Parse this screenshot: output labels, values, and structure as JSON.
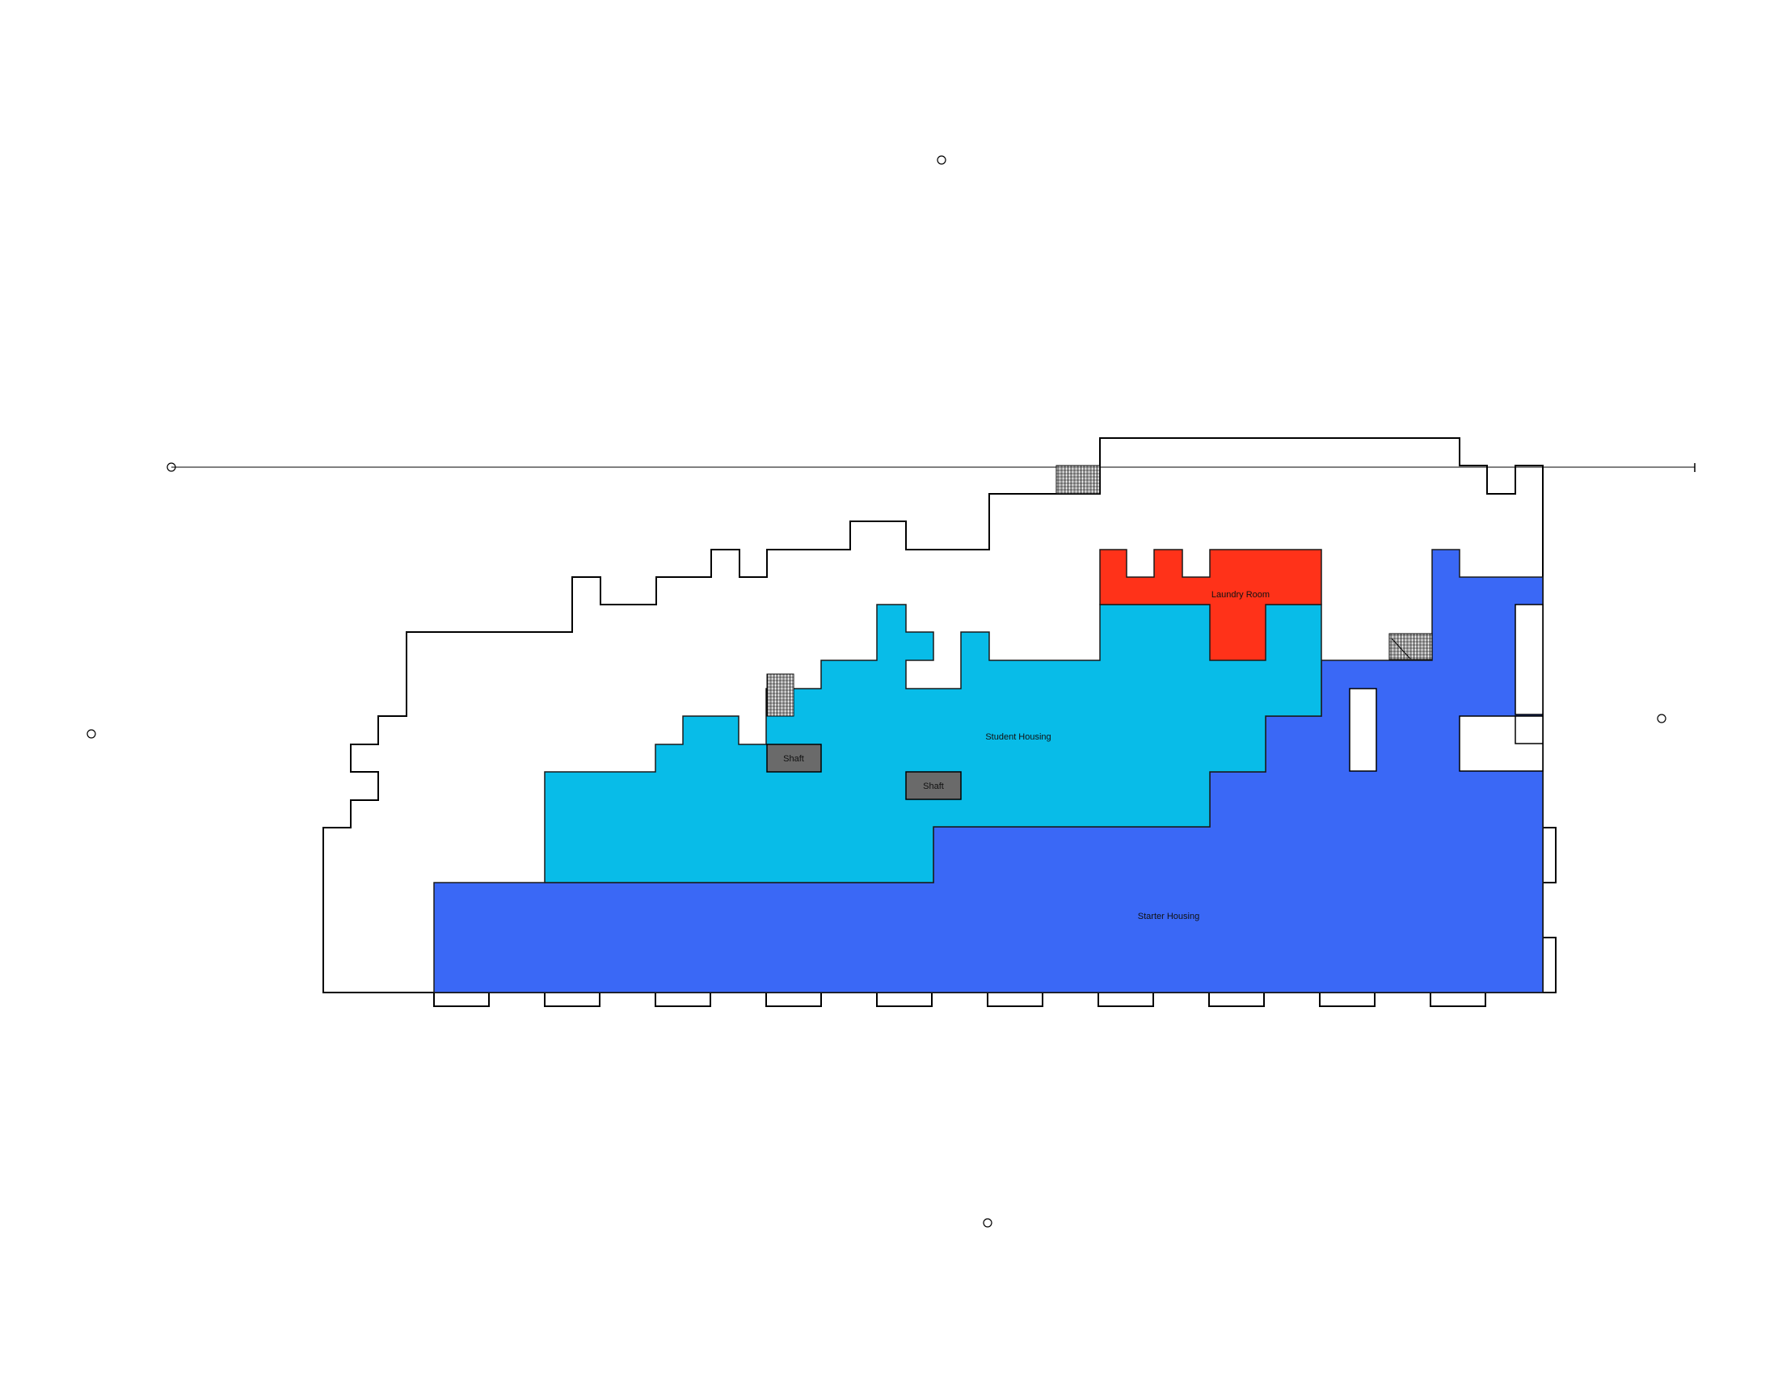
{
  "plan": {
    "rooms": [
      {
        "id": "laundry-room",
        "label": "Laundry Room",
        "color": "#ff3219"
      },
      {
        "id": "student-housing",
        "label": "Student Housing",
        "color": "#08bce8"
      },
      {
        "id": "starter-housing",
        "label": "Starter Housing",
        "color": "#3a68f6"
      }
    ],
    "shafts": [
      {
        "id": "shaft-1",
        "label": "Shaft",
        "color": "#6a6a6a"
      },
      {
        "id": "shaft-2",
        "label": "Shaft",
        "color": "#6a6a6a"
      }
    ]
  }
}
